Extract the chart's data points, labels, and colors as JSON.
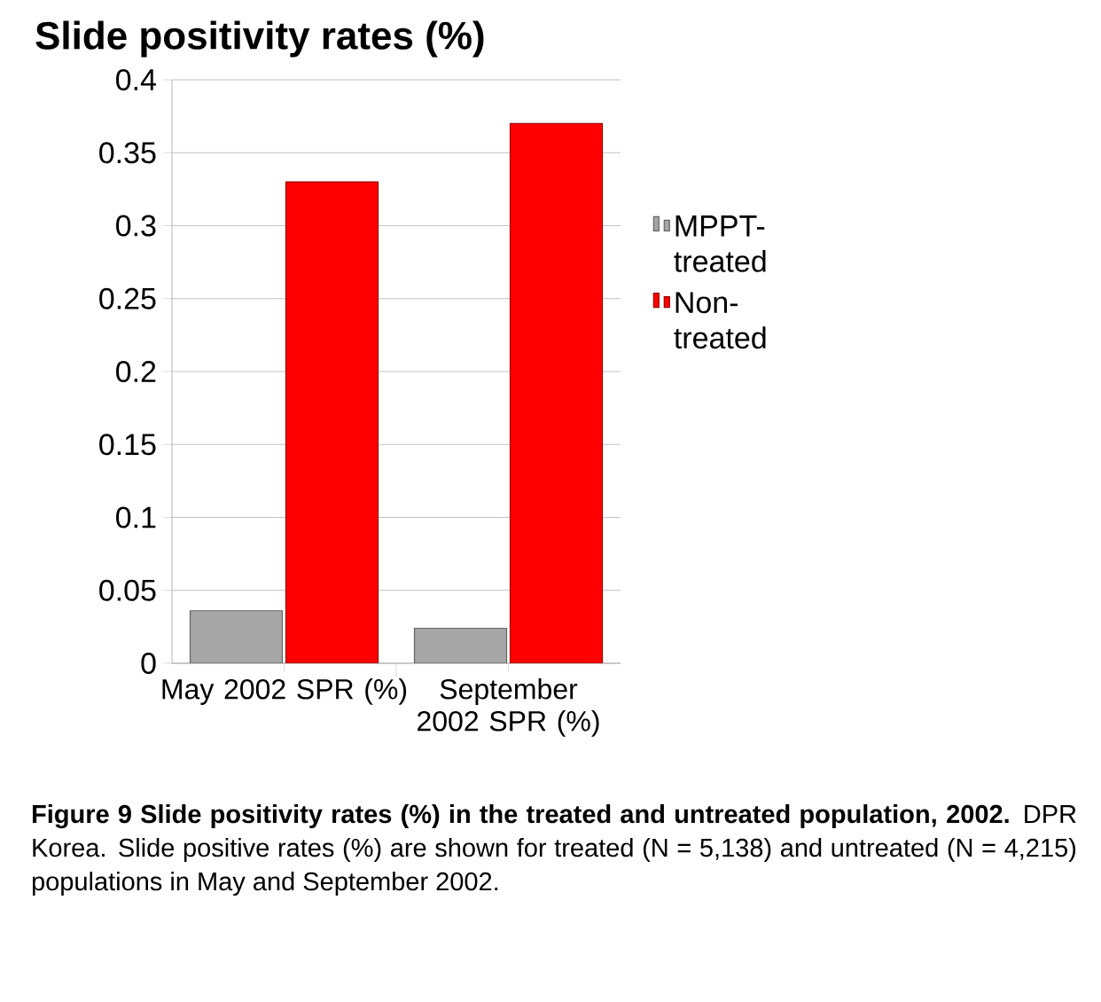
{
  "chart_data": {
    "type": "bar",
    "title": "Slide positivity rates (%)",
    "categories": [
      "May 2002 SPR (%)",
      "September 2002 SPR (%)"
    ],
    "series": [
      {
        "name": "MPPT-treated",
        "color": "#a6a6a6",
        "values": [
          0.036,
          0.024
        ]
      },
      {
        "name": "Non-treated",
        "color": "#ff0000",
        "values": [
          0.33,
          0.37
        ]
      }
    ],
    "ylim": [
      0,
      0.4
    ],
    "yticks": [
      0,
      0.05,
      0.1,
      0.15,
      0.2,
      0.25,
      0.3,
      0.35,
      0.4
    ],
    "grid": "y",
    "legend": "right",
    "annotations": [
      "**Figure 9 Slide positivity rates (%) in the treated and untreated population, 2002.** DPR Korea. Slide positive rates (%) are shown for treated (N = 5,138) and untreated (N = 4,215) populations in May and September 2002."
    ]
  }
}
